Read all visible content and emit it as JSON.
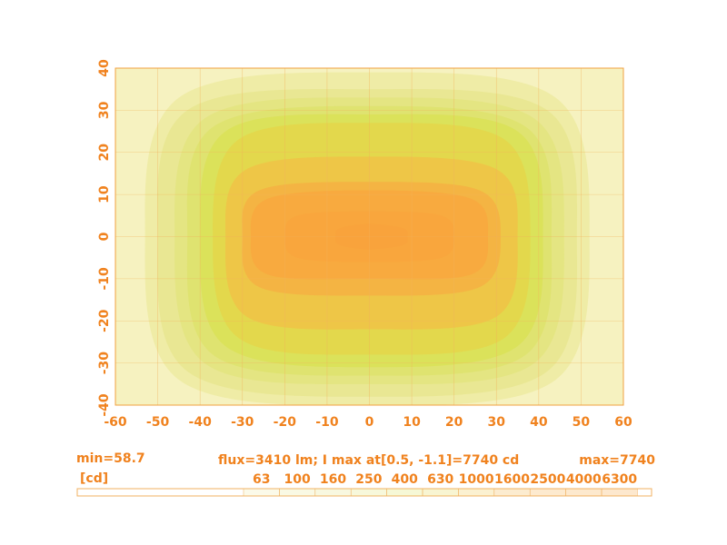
{
  "chart_data": {
    "type": "contour",
    "xlim": [
      -60,
      60
    ],
    "ylim": [
      -40,
      40
    ],
    "xticks": [
      -60,
      -50,
      -40,
      -30,
      -20,
      -10,
      0,
      10,
      20,
      30,
      40,
      50,
      60
    ],
    "yticks": [
      -40,
      -30,
      -20,
      -10,
      0,
      10,
      20,
      30,
      40
    ],
    "grid": true,
    "background_color": "#f6f2c0",
    "levels": [
      {
        "value": 63,
        "color": "#efeca6",
        "x": [
          -53,
          -45,
          0,
          44,
          52,
          44,
          0,
          -45
        ],
        "y": [
          0,
          33,
          39,
          33,
          0,
          -34,
          -40,
          -34
        ]
      },
      {
        "value": 100,
        "color": "#e9e793",
        "x": [
          -50,
          -43,
          0,
          42,
          49,
          42,
          0,
          -43
        ],
        "y": [
          0,
          30,
          35,
          30,
          0,
          -32,
          -38,
          -32
        ]
      },
      {
        "value": 160,
        "color": "#e4e582",
        "x": [
          -46,
          -39,
          0,
          39,
          46,
          39,
          0,
          -39
        ],
        "y": [
          0,
          28,
          33,
          28,
          0,
          -30,
          -35,
          -30
        ]
      },
      {
        "value": 250,
        "color": "#dfe370",
        "x": [
          -43,
          -37,
          0,
          37,
          43,
          37,
          0,
          -37
        ],
        "y": [
          0,
          26,
          31,
          26,
          0,
          -28,
          -33,
          -28
        ]
      },
      {
        "value": 400,
        "color": "#dbe25a",
        "x": [
          -40,
          -34,
          0,
          35,
          41,
          35,
          0,
          -34
        ],
        "y": [
          0,
          25,
          29,
          25,
          0,
          -26,
          -31,
          -26
        ]
      },
      {
        "value": 630,
        "color": "#e3d84c",
        "x": [
          -37,
          -31,
          0,
          32,
          38,
          32,
          0,
          -31
        ],
        "y": [
          0,
          23,
          27,
          23,
          0,
          -24,
          -28,
          -24
        ]
      },
      {
        "value": 1000,
        "color": "#eec647",
        "x": [
          -34,
          -29,
          0,
          30,
          35,
          30,
          0,
          -29
        ],
        "y": [
          0,
          16,
          19,
          16,
          0,
          -19,
          -22,
          -19
        ]
      },
      {
        "value": 1600,
        "color": "#f4b443",
        "x": [
          -30,
          -26,
          0,
          26,
          31,
          26,
          0,
          -26
        ],
        "y": [
          0,
          11,
          13,
          11,
          0,
          -12,
          -14,
          -12
        ]
      },
      {
        "value": 2500,
        "color": "#f8aa3f",
        "x": [
          -28,
          -24,
          0,
          24,
          28,
          24,
          0,
          -24
        ],
        "y": [
          0,
          9,
          11,
          9,
          0,
          -9,
          -10,
          -9
        ]
      },
      {
        "value": 4000,
        "color": "#f9a63d",
        "x": [
          -20,
          -17,
          0,
          17,
          20,
          17,
          0,
          -17
        ],
        "y": [
          0,
          5,
          6,
          5,
          0,
          -5,
          -6,
          -5
        ]
      },
      {
        "value": 6300,
        "color": "#f9a33c",
        "x": [
          -8,
          -7,
          0,
          8,
          9,
          8,
          0,
          -7
        ],
        "y": [
          0,
          2,
          3,
          2,
          0,
          -2,
          -3,
          -2
        ]
      }
    ],
    "annotations": {
      "min": "min=58.7",
      "summary": "flux=3410 lm; I max  at[0.5, -1.1]=7740 cd",
      "max": "max=7740",
      "unit": "[cd]"
    }
  }
}
